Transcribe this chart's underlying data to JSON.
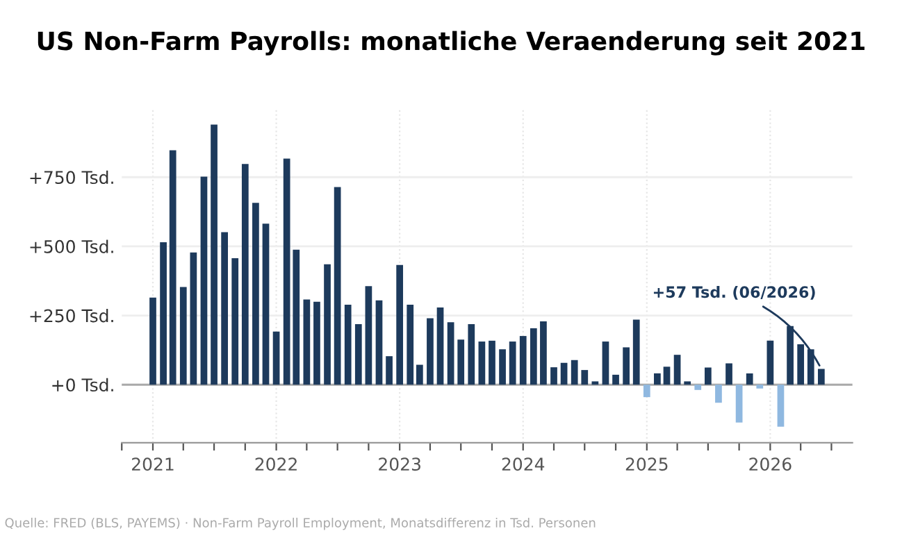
{
  "chart_data": {
    "type": "bar",
    "title": "US Non-Farm Payrolls: monatliche Veraenderung seit 2021",
    "x": [
      "2021-01",
      "2021-02",
      "2021-03",
      "2021-04",
      "2021-05",
      "2021-06",
      "2021-07",
      "2021-08",
      "2021-09",
      "2021-10",
      "2021-11",
      "2021-12",
      "2022-01",
      "2022-02",
      "2022-03",
      "2022-04",
      "2022-05",
      "2022-06",
      "2022-07",
      "2022-08",
      "2022-09",
      "2022-10",
      "2022-11",
      "2022-12",
      "2023-01",
      "2023-02",
      "2023-03",
      "2023-04",
      "2023-05",
      "2023-06",
      "2023-07",
      "2023-08",
      "2023-09",
      "2023-10",
      "2023-11",
      "2023-12",
      "2024-01",
      "2024-02",
      "2024-03",
      "2024-04",
      "2024-05",
      "2024-06",
      "2024-07",
      "2024-08",
      "2024-09",
      "2024-10",
      "2024-11",
      "2024-12",
      "2025-01",
      "2025-02",
      "2025-03",
      "2025-04",
      "2025-05",
      "2025-06",
      "2025-07",
      "2025-08",
      "2025-09",
      "2025-10",
      "2025-11",
      "2025-12",
      "2026-01",
      "2026-02",
      "2026-03",
      "2026-04",
      "2026-05",
      "2026-06"
    ],
    "values": [
      315,
      515,
      847,
      353,
      478,
      752,
      940,
      551,
      457,
      798,
      657,
      582,
      192,
      817,
      488,
      308,
      300,
      435,
      714,
      289,
      219,
      356,
      305,
      103,
      433,
      289,
      72,
      240,
      279,
      226,
      163,
      219,
      156,
      159,
      128,
      156,
      176,
      204,
      229,
      63,
      79,
      89,
      53,
      12,
      156,
      36,
      135,
      235,
      -45,
      41,
      65,
      108,
      12,
      -19,
      62,
      -65,
      77,
      -137,
      41,
      -14,
      159,
      -152,
      212,
      146,
      128,
      57
    ],
    "colors": [
      "#1d3a5c",
      "#1d3a5c",
      "#1d3a5c",
      "#1d3a5c",
      "#1d3a5c",
      "#1d3a5c",
      "#1d3a5c",
      "#1d3a5c",
      "#1d3a5c",
      "#1d3a5c",
      "#1d3a5c",
      "#1d3a5c",
      "#1d3a5c",
      "#1d3a5c",
      "#1d3a5c",
      "#1d3a5c",
      "#1d3a5c",
      "#1d3a5c",
      "#1d3a5c",
      "#1d3a5c",
      "#1d3a5c",
      "#1d3a5c",
      "#1d3a5c",
      "#1d3a5c",
      "#1d3a5c",
      "#1d3a5c",
      "#1d3a5c",
      "#1d3a5c",
      "#1d3a5c",
      "#1d3a5c",
      "#1d3a5c",
      "#1d3a5c",
      "#1d3a5c",
      "#1d3a5c",
      "#1d3a5c",
      "#1d3a5c",
      "#1d3a5c",
      "#1d3a5c",
      "#1d3a5c",
      "#1d3a5c",
      "#1d3a5c",
      "#1d3a5c",
      "#1d3a5c",
      "#1d3a5c",
      "#1d3a5c",
      "#1d3a5c",
      "#1d3a5c",
      "#1d3a5c",
      "#8fb8e0",
      "#1d3a5c",
      "#1d3a5c",
      "#1d3a5c",
      "#1d3a5c",
      "#8fb8e0",
      "#1d3a5c",
      "#8fb8e0",
      "#1d3a5c",
      "#8fb8e0",
      "#1d3a5c",
      "#8fb8e0",
      "#1d3a5c",
      "#8fb8e0",
      "#1d3a5c",
      "#1d3a5c",
      "#1d3a5c",
      "#1d3a5c"
    ],
    "ylim": [
      -210,
      1000
    ],
    "yticks": [
      {
        "value": 0,
        "label": "+0 Tsd."
      },
      {
        "value": 250,
        "label": "+250 Tsd."
      },
      {
        "value": 500,
        "label": "+500 Tsd."
      },
      {
        "value": 750,
        "label": "+750 Tsd."
      }
    ],
    "xlim": [
      "2020-10",
      "2026-09"
    ],
    "xticks": [
      {
        "value": "2020-10",
        "label": null
      },
      {
        "value": "2021-01",
        "label": "2021"
      },
      {
        "value": "2021-04",
        "label": null
      },
      {
        "value": "2021-07",
        "label": null
      },
      {
        "value": "2021-10",
        "label": null
      },
      {
        "value": "2022-01",
        "label": "2022"
      },
      {
        "value": "2022-04",
        "label": null
      },
      {
        "value": "2022-07",
        "label": null
      },
      {
        "value": "2022-10",
        "label": null
      },
      {
        "value": "2023-01",
        "label": "2023"
      },
      {
        "value": "2023-04",
        "label": null
      },
      {
        "value": "2023-07",
        "label": null
      },
      {
        "value": "2023-10",
        "label": null
      },
      {
        "value": "2024-01",
        "label": "2024"
      },
      {
        "value": "2024-04",
        "label": null
      },
      {
        "value": "2024-07",
        "label": null
      },
      {
        "value": "2024-10",
        "label": null
      },
      {
        "value": "2025-01",
        "label": "2025"
      },
      {
        "value": "2025-04",
        "label": null
      },
      {
        "value": "2025-07",
        "label": null
      },
      {
        "value": "2025-10",
        "label": null
      },
      {
        "value": "2026-01",
        "label": "2026"
      },
      {
        "value": "2026-04",
        "label": null
      },
      {
        "value": "2026-07",
        "label": null
      }
    ],
    "grid": true,
    "annotations": [
      {
        "text": "+57 Tsd. (06/2026)",
        "x": "2026-06",
        "y": 57
      },
      "Quelle: FRED (BLS, PAYEMS) · Non-Farm Payroll Employment, Monatsdifferenz in Tsd. Personen"
    ]
  }
}
